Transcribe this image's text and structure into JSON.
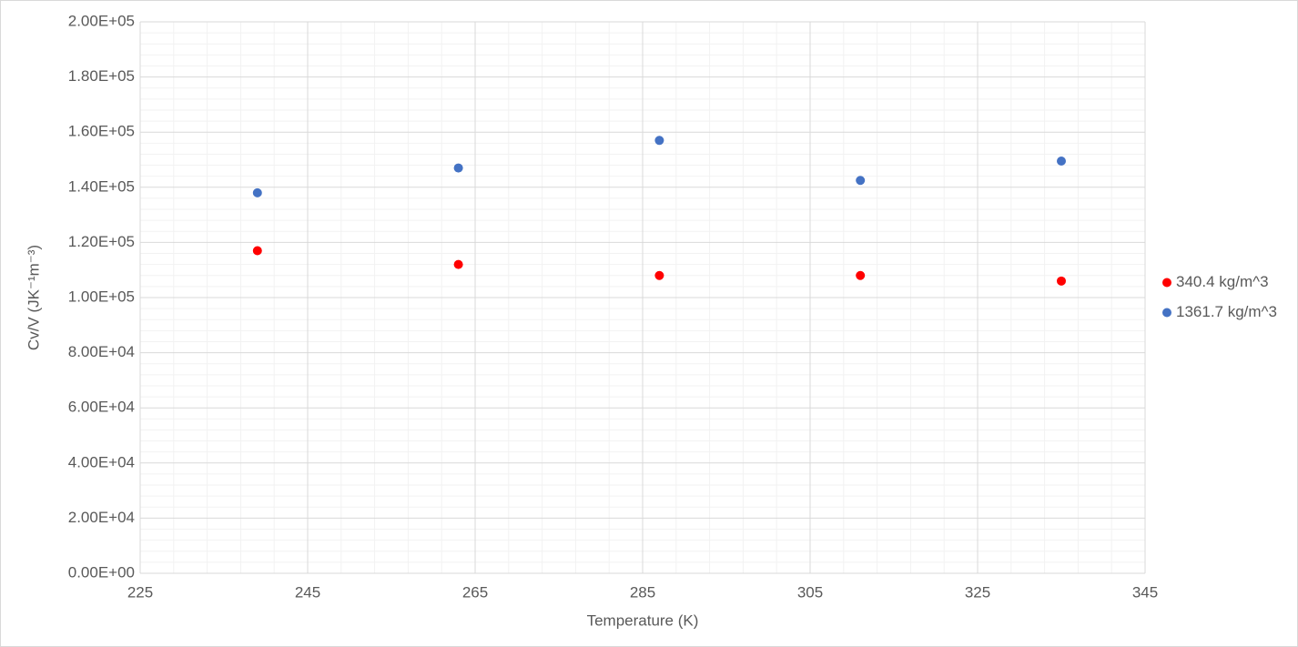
{
  "chart_data": {
    "type": "scatter",
    "x_label": "Temperature (K)",
    "y_label": "Cv/V (JK⁻¹m⁻³)",
    "xlim": [
      225,
      345
    ],
    "xticks": [
      225,
      245,
      265,
      285,
      305,
      325,
      345
    ],
    "ylim": [
      0,
      200000
    ],
    "yticks": [
      {
        "value": 0,
        "label": "0.00E+00"
      },
      {
        "value": 20000,
        "label": "2.00E+04"
      },
      {
        "value": 40000,
        "label": "4.00E+04"
      },
      {
        "value": 60000,
        "label": "6.00E+04"
      },
      {
        "value": 80000,
        "label": "8.00E+04"
      },
      {
        "value": 100000,
        "label": "1.00E+05"
      },
      {
        "value": 120000,
        "label": "1.20E+05"
      },
      {
        "value": 140000,
        "label": "1.40E+05"
      },
      {
        "value": 160000,
        "label": "1.60E+05"
      },
      {
        "value": 180000,
        "label": "1.80E+05"
      },
      {
        "value": 200000,
        "label": "2.00E+05"
      }
    ],
    "grid": true,
    "minor_grid": true,
    "legend": "right",
    "series": [
      {
        "name": "340.4 kg/m^3",
        "color": "#ff0000",
        "x": [
          239,
          263,
          287,
          311,
          335
        ],
        "values": [
          117000,
          112000,
          108000,
          108000,
          106000
        ]
      },
      {
        "name": "1361.7 kg/m^3",
        "color": "#4472c4",
        "x": [
          239,
          263,
          287,
          311,
          335
        ],
        "values": [
          138000,
          147000,
          157000,
          142500,
          149500
        ]
      }
    ]
  }
}
